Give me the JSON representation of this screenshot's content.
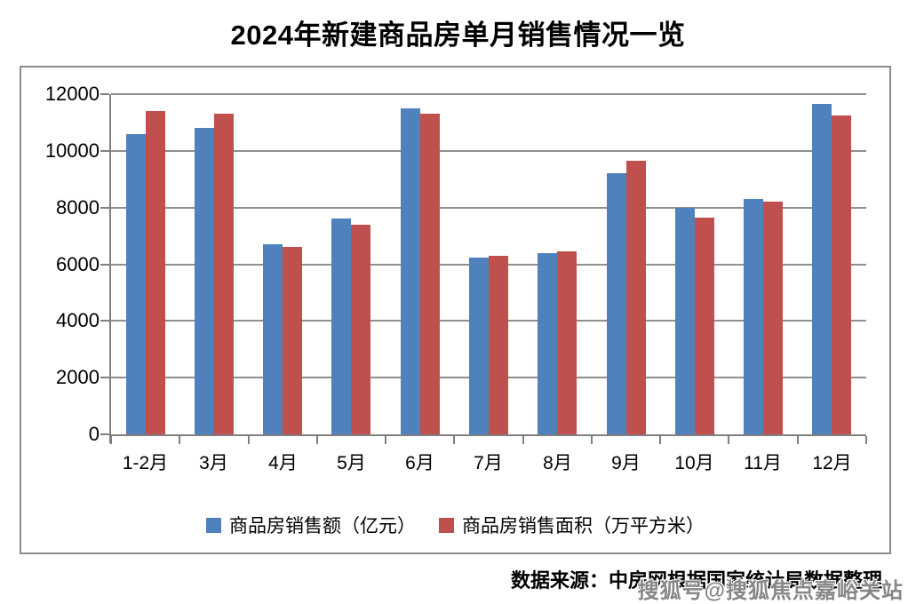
{
  "title": "2024年新建商品房单月销售情况一览",
  "chart_data": {
    "type": "bar",
    "title": "2024年新建商品房单月销售情况一览",
    "categories": [
      "1-2月",
      "3月",
      "4月",
      "5月",
      "6月",
      "7月",
      "8月",
      "9月",
      "10月",
      "11月",
      "12月"
    ],
    "series": [
      {
        "name": "商品房销售额（亿元）",
        "color": "#4F81BD",
        "values": [
          10600,
          10800,
          6700,
          7600,
          11500,
          6250,
          6400,
          9200,
          8000,
          8300,
          11650
        ]
      },
      {
        "name": "商品房销售面积（万平方米）",
        "color": "#C0504D",
        "values": [
          11400,
          11300,
          6600,
          7400,
          11300,
          6300,
          6450,
          9650,
          7650,
          8200,
          11250
        ]
      }
    ],
    "ylim": [
      0,
      12000
    ],
    "yticks": [
      0,
      2000,
      4000,
      6000,
      8000,
      10000,
      12000
    ],
    "xlabel": "",
    "ylabel": "",
    "grid": true,
    "legend_position": "bottom"
  },
  "colors": {
    "axis": "#808080",
    "gridline": "#8f8f8f",
    "series1": "#4F81BD",
    "series2": "#C0504D",
    "box_border": "#8c8c8c",
    "watermark": "#878787"
  },
  "source_note": "数据来源：中房网根据国家统计局数据整理",
  "watermark": "搜狐号@搜狐焦点嘉峪关站"
}
